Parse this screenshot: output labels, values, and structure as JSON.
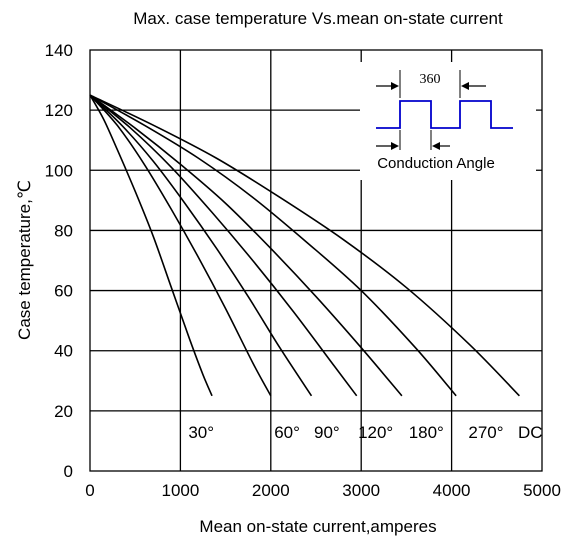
{
  "chart_data": {
    "type": "line",
    "title": "Max. case temperature Vs.mean on-state current",
    "xlabel": "Mean on-state current,amperes",
    "ylabel": "Case temperature,℃",
    "xlim": [
      0,
      5000
    ],
    "ylim": [
      0,
      140
    ],
    "x_ticks": [
      "0",
      "1000",
      "2000",
      "3000",
      "4000",
      "5000"
    ],
    "y_ticks": [
      "0",
      "20",
      "40",
      "60",
      "80",
      "100",
      "120",
      "140"
    ],
    "grid": true,
    "series": [
      {
        "name": "30°",
        "x": [
          0,
          150,
          300,
          500,
          700,
          900,
          1100,
          1250,
          1350
        ],
        "y": [
          125,
          117,
          107,
          93,
          78,
          61,
          44,
          32,
          25
        ]
      },
      {
        "name": "60°",
        "x": [
          0,
          300,
          600,
          900,
          1200,
          1500,
          1800,
          2000
        ],
        "y": [
          125,
          115,
          102,
          87,
          71,
          54,
          36,
          25
        ]
      },
      {
        "name": "90°",
        "x": [
          0,
          350,
          700,
          1050,
          1400,
          1750,
          2100,
          2450
        ],
        "y": [
          125,
          115,
          103,
          89,
          74,
          58,
          41,
          25
        ]
      },
      {
        "name": "120°",
        "x": [
          0,
          450,
          900,
          1350,
          1800,
          2250,
          2700,
          2950
        ],
        "y": [
          125,
          114,
          101,
          86,
          70,
          53,
          35,
          25
        ]
      },
      {
        "name": "180°",
        "x": [
          0,
          500,
          1000,
          1500,
          2000,
          2500,
          3000,
          3450
        ],
        "y": [
          125,
          114,
          102,
          89,
          74,
          58,
          41,
          25
        ]
      },
      {
        "name": "270°",
        "x": [
          0,
          600,
          1200,
          1800,
          2400,
          3000,
          3600,
          4050
        ],
        "y": [
          125,
          115,
          104,
          91,
          76,
          60,
          41,
          25
        ]
      },
      {
        "name": "DC",
        "x": [
          0,
          700,
          1400,
          2100,
          2800,
          3500,
          4200,
          4750
        ],
        "y": [
          125,
          115,
          104,
          91,
          77,
          61,
          42,
          25
        ]
      }
    ],
    "curve_labels": [
      {
        "text": "30°",
        "x": 1230,
        "y": 13
      },
      {
        "text": "60°",
        "x": 2180,
        "y": 13
      },
      {
        "text": "90°",
        "x": 2620,
        "y": 13
      },
      {
        "text": "120°",
        "x": 3160,
        "y": 13
      },
      {
        "text": "180°",
        "x": 3720,
        "y": 13
      },
      {
        "text": "270°",
        "x": 4380,
        "y": 13
      },
      {
        "text": "DC",
        "x": 4870,
        "y": 13
      }
    ],
    "inset": {
      "period_label": "360",
      "angle_label": "Conduction Angle",
      "waveform_color": "#0000cc"
    }
  }
}
